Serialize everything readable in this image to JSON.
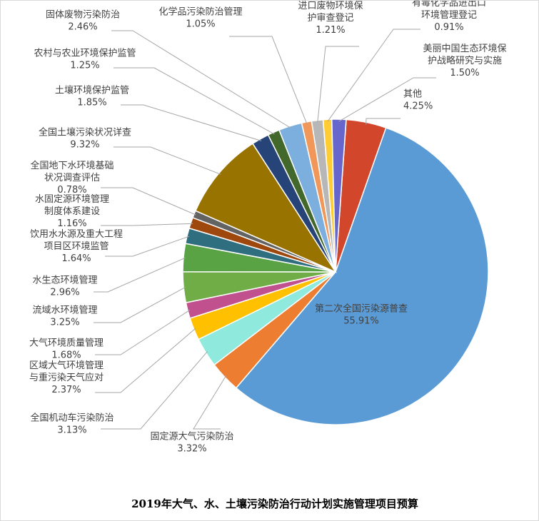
{
  "chart_data": {
    "type": "pie",
    "title": "2019年大气、水、土壤污染防治行动计划实施管理项目预算",
    "slices": [
      {
        "label": [
          "其他"
        ],
        "value": "4.25%",
        "percent": 4.25,
        "color": "#d2462c"
      },
      {
        "label": [
          "第二次全国污染源普查"
        ],
        "value": "55.91%",
        "percent": 55.91,
        "color": "#5b9bd5"
      },
      {
        "label": [
          "固定源大气污染防治"
        ],
        "value": "3.32%",
        "percent": 3.32,
        "color": "#ed7d31"
      },
      {
        "label": [
          "全国机动车污染防治"
        ],
        "value": "3.13%",
        "percent": 3.13,
        "color": "#8fe9dc"
      },
      {
        "label": [
          "区域大气环境管理",
          "与重污染天气应对"
        ],
        "value": "2.37%",
        "percent": 2.37,
        "color": "#ffc000"
      },
      {
        "label": [
          "大气环境质量管理"
        ],
        "value": "1.68%",
        "percent": 1.68,
        "color": "#c0508e"
      },
      {
        "label": [
          "流域水环境管理"
        ],
        "value": "3.25%",
        "percent": 3.25,
        "color": "#70ad47"
      },
      {
        "label": [
          "水生态环境管理"
        ],
        "value": "2.96%",
        "percent": 2.96,
        "color": "#5aa344"
      },
      {
        "label": [
          "饮用水水源及重大工程",
          "项目区环境监管"
        ],
        "value": "1.64%",
        "percent": 1.64,
        "color": "#2e6e7e"
      },
      {
        "label": [
          "水固定源环境管理",
          "制度体系建设"
        ],
        "value": "1.16%",
        "percent": 1.16,
        "color": "#9e480e"
      },
      {
        "label": [
          "全国地下水环境基础",
          "状况调查评估"
        ],
        "value": "0.78%",
        "percent": 0.78,
        "color": "#636363"
      },
      {
        "label": [
          "全国土壤污染状况详查"
        ],
        "value": "9.32%",
        "percent": 9.32,
        "color": "#997300"
      },
      {
        "label": [
          "土壤环境保护监管"
        ],
        "value": "1.85%",
        "percent": 1.85,
        "color": "#264478"
      },
      {
        "label": [
          "农村与农业环境保护监管"
        ],
        "value": "1.25%",
        "percent": 1.25,
        "color": "#43682b"
      },
      {
        "label": [
          "固体废物污染防治"
        ],
        "value": "2.46%",
        "percent": 2.46,
        "color": "#7cafdd"
      },
      {
        "label": [
          "化学品污染防治管理"
        ],
        "value": "1.05%",
        "percent": 1.05,
        "color": "#f1975a"
      },
      {
        "label": [
          "进口废物环境保",
          "护审查登记"
        ],
        "value": "1.21%",
        "percent": 1.21,
        "color": "#b7b7b7"
      },
      {
        "label": [
          "有毒化学品进出口",
          "环境管理登记"
        ],
        "value": "0.91%",
        "percent": 0.91,
        "color": "#ffcd33"
      },
      {
        "label": [
          "美丽中国生态环境保",
          "护战略研究与实施"
        ],
        "value": "1.50%",
        "percent": 1.5,
        "color": "#6666cc"
      }
    ]
  }
}
